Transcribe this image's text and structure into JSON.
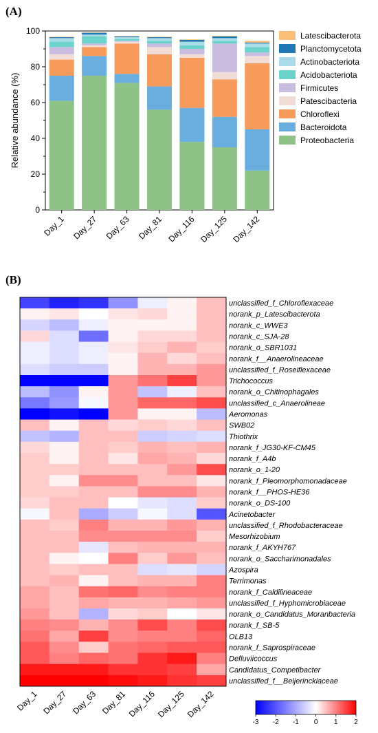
{
  "panel_a_label": "(A)",
  "panel_b_label": "(B)",
  "chart_data": [
    {
      "type": "bar",
      "stacked": true,
      "categories": [
        "Day_1",
        "Day_27",
        "Day_63",
        "Day_81",
        "Day_116",
        "Day_125",
        "Day_142"
      ],
      "ylabel": "Relative abundance (%)",
      "ylim": [
        0,
        100
      ],
      "yticks": [
        0,
        20,
        40,
        60,
        80,
        100
      ],
      "legend_position": "right",
      "series": [
        {
          "name": "Proteobacteria",
          "color": "#8ec286",
          "values": [
            61,
            75,
            71,
            56,
            38,
            35,
            22
          ]
        },
        {
          "name": "Bacteroidota",
          "color": "#6aaee0",
          "values": [
            14,
            11,
            5,
            13,
            19,
            17,
            23
          ]
        },
        {
          "name": "Chloroflexi",
          "color": "#f79b5d",
          "values": [
            9,
            5,
            17,
            18,
            28,
            21,
            37
          ]
        },
        {
          "name": "Patescibacteria",
          "color": "#f2ddd6",
          "values": [
            3,
            1,
            1,
            4,
            2,
            4,
            4
          ]
        },
        {
          "name": "Firmicutes",
          "color": "#c8bde0",
          "values": [
            4,
            1,
            0.5,
            2,
            3,
            16,
            2
          ]
        },
        {
          "name": "Acidobacteriota",
          "color": "#6cd3cb",
          "values": [
            3,
            4,
            1,
            1.5,
            2,
            1.5,
            3
          ]
        },
        {
          "name": "Actinobacteriota",
          "color": "#a9dbe8",
          "values": [
            2,
            1,
            1,
            1.5,
            2,
            1.5,
            2
          ]
        },
        {
          "name": "Planctomycetota",
          "color": "#1f78b4",
          "values": [
            0.5,
            1,
            0.5,
            0.5,
            1,
            1,
            0.5
          ]
        },
        {
          "name": "Latescibacterota",
          "color": "#fbbf7a",
          "values": [
            0.3,
            0.2,
            0.2,
            0.3,
            0.3,
            0.3,
            1
          ]
        }
      ]
    },
    {
      "type": "heatmap",
      "columns": [
        "Day_1",
        "Day_27",
        "Day_63",
        "Day_81",
        "Day_116",
        "Day_125",
        "Day_142"
      ],
      "rows": [
        "unclassified_f_Chloroflexaceae",
        "norank_p_Latescibacterota",
        "norank_c_WWE3",
        "norank_c_SJA-28",
        "norank_o_SBR1031",
        "norank_f__Anaerolineaceae",
        "unclassified_f_Roseiflexaceae",
        "Trichococcus",
        "norank_o_Chitinophagales",
        "unclassified_c_Anaerolineae",
        "Aeromonas",
        "SWB02",
        "Thiothrix",
        "norank_f_JG30-KF-CM45",
        "norank_f_A4b",
        "norank_o_1-20",
        "norank_f_Pleomorphomonadaceae",
        "norank_f__PHOS-HE36",
        "norank_o_DS-100",
        "Acinetobacter",
        "unclassified_f_Rhodobacteraceae",
        "Mesorhizobium",
        "norank_f_AKYH767",
        "norank_o_Saccharimonadales",
        "Azospira",
        "Terrimonas",
        "norank_f_Caldilineaceae",
        "unclassified_f_Hyphomicrobiaceae",
        "norank_o_Candidatus_Moranbacteria",
        "norank_f_SB-5",
        "OLB13",
        "norank_f_Saprospiraceae",
        "Defluviicoccus",
        "Candidatus_Competibacter",
        "unclassified_f__Beijerinckiaceae"
      ],
      "values": [
        [
          -2.2,
          -2.6,
          -2.4,
          -1.3,
          -0.2,
          0.1,
          0.5
        ],
        [
          0.1,
          0.2,
          0.0,
          0.2,
          0.3,
          0.1,
          0.5
        ],
        [
          -0.5,
          -0.8,
          -0.2,
          0.1,
          0.1,
          0.1,
          0.5
        ],
        [
          0.3,
          -0.4,
          -1.7,
          0.1,
          0.3,
          0.3,
          0.5
        ],
        [
          -0.2,
          -0.4,
          -0.2,
          0.2,
          0.4,
          0.6,
          0.4
        ],
        [
          -0.2,
          -0.4,
          -0.2,
          0.1,
          0.6,
          0.3,
          0.5
        ],
        [
          -0.4,
          -0.6,
          -0.6,
          0.1,
          0.6,
          0.6,
          0.8
        ],
        [
          -3.0,
          -3.0,
          -3.0,
          0.8,
          1.1,
          1.5,
          0.8
        ],
        [
          -0.8,
          -1.3,
          0.1,
          0.8,
          -0.7,
          -0.2,
          0.5
        ],
        [
          -1.6,
          -1.2,
          -0.1,
          0.8,
          1.2,
          1.2,
          1.4
        ],
        [
          -3.0,
          -2.8,
          -3.0,
          0.8,
          0.1,
          0.1,
          -0.8
        ],
        [
          0.5,
          0.1,
          0.5,
          0.3,
          0.4,
          0.3,
          0.5
        ],
        [
          -0.7,
          -0.9,
          0.5,
          0.5,
          -0.6,
          -0.5,
          -0.4
        ],
        [
          0.3,
          0.1,
          0.5,
          0.4,
          0.6,
          0.5,
          0.6
        ],
        [
          0.4,
          0.1,
          0.5,
          0.2,
          0.7,
          0.6,
          0.3
        ],
        [
          0.4,
          0.4,
          0.5,
          0.5,
          0.5,
          0.8,
          1.4
        ],
        [
          0.4,
          0.1,
          0.9,
          0.9,
          0.5,
          0.5,
          0.2
        ],
        [
          0.4,
          0.4,
          0.5,
          0.5,
          0.9,
          0.9,
          0.6
        ],
        [
          0.3,
          0.5,
          0.5,
          0.0,
          -0.3,
          -0.4,
          0.4
        ],
        [
          -0.1,
          0.5,
          -1.0,
          -0.6,
          -0.1,
          -0.4,
          -2.0
        ],
        [
          0.5,
          0.4,
          1.0,
          0.6,
          0.6,
          0.8,
          0.6
        ],
        [
          0.5,
          0.5,
          0.9,
          0.9,
          0.9,
          0.9,
          0.4
        ],
        [
          0.5,
          0.5,
          -0.3,
          0.5,
          0.6,
          0.6,
          0.6
        ],
        [
          0.5,
          0.1,
          0.0,
          1.0,
          0.4,
          0.8,
          0.5
        ],
        [
          0.5,
          0.4,
          0.5,
          0.5,
          -0.4,
          -0.3,
          -0.5
        ],
        [
          0.5,
          0.6,
          0.1,
          0.5,
          0.6,
          0.6,
          1.0
        ],
        [
          0.7,
          0.5,
          1.1,
          1.2,
          0.9,
          1.0,
          1.0
        ],
        [
          0.7,
          0.5,
          0.7,
          0.6,
          0.6,
          0.7,
          0.8
        ],
        [
          0.8,
          0.5,
          -0.9,
          0.3,
          0.4,
          0.0,
          0.2
        ],
        [
          1.0,
          0.9,
          0.6,
          0.9,
          1.4,
          1.0,
          1.4
        ],
        [
          1.1,
          0.7,
          1.5,
          0.9,
          1.0,
          1.0,
          1.2
        ],
        [
          1.3,
          0.9,
          0.4,
          1.1,
          1.2,
          1.3,
          1.3
        ],
        [
          1.3,
          1.0,
          1.2,
          1.1,
          1.6,
          1.8,
          1.0
        ],
        [
          1.8,
          1.8,
          1.8,
          1.6,
          1.6,
          1.5,
          0.7
        ],
        [
          2.0,
          2.0,
          2.0,
          1.9,
          1.8,
          1.6,
          1.5
        ]
      ],
      "colorbar": {
        "min": -3,
        "max": 2,
        "ticks": [
          "-3",
          "-2",
          "-1",
          "0",
          "1",
          "2"
        ],
        "low_color": "#0000ff",
        "mid_color": "#ffffff",
        "high_color": "#ff0000"
      }
    }
  ]
}
